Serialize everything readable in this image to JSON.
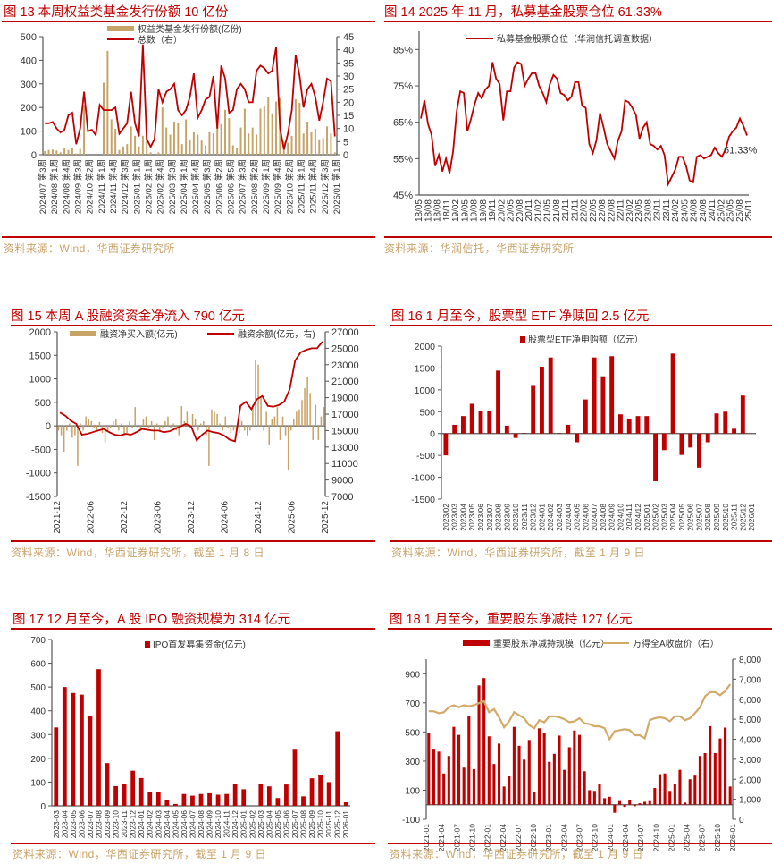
{
  "colors": {
    "title": "#c00000",
    "source": "#c9a46a",
    "red": "#c00000",
    "tan": "#c8a368"
  },
  "chart_data": [
    {
      "id": "fig13",
      "type": "bar+line",
      "title": "图 13 本周权益类基金发行份额 10 亿份",
      "source": "资料来源：Wind，华西证券研究所",
      "left_ticks": [
        "500",
        "400",
        "300",
        "200",
        "100",
        "0"
      ],
      "right_ticks": [
        "45",
        "40",
        "35",
        "30",
        "25",
        "20",
        "15",
        "10",
        "5",
        "0"
      ],
      "xlabels": [
        "2024/07 第3周",
        "2024/08 第1周",
        "2024/08 第4周",
        "2024/09 第3周",
        "2024/10 第2周",
        "2024/11 第1周",
        "2024/11 第4周",
        "2024/12 第3周",
        "2025/01 第1周",
        "2025/02 第1周",
        "2025/02 第4周",
        "2025/03 第3周",
        "2025/04 第1周",
        "2025/04 第4周",
        "2025/05 第3周",
        "2025/06 第2周",
        "2025/06 第5周",
        "2025/07 第3周",
        "2025/08 第2周",
        "2025/09 第1周",
        "2025/09 第4周",
        "2025/10 第2周",
        "2025/11 第1周",
        "2025/11 第4周",
        "2025/12 第3周",
        "2026/01 第1周"
      ],
      "bars": {
        "name": "权益类基金发行份额(亿份)",
        "axis": "left",
        "color": "#c8a368",
        "values": [
          15,
          20,
          22,
          18,
          10,
          30,
          20,
          30,
          5,
          25,
          210,
          0,
          0,
          0,
          0,
          305,
          440,
          150,
          110,
          20,
          35,
          45,
          120,
          80,
          35,
          80,
          150,
          10,
          0,
          10,
          200,
          115,
          85,
          140,
          135,
          45,
          150,
          65,
          95,
          85,
          60,
          40,
          95,
          90,
          130,
          130,
          190,
          155,
          40,
          30,
          115,
          195,
          90,
          115,
          85,
          195,
          205,
          245,
          175,
          225,
          240,
          55,
          50,
          80,
          235,
          220,
          90,
          140,
          95,
          110,
          65,
          70,
          120,
          90,
          10
        ]
      },
      "line": {
        "name": "总数（右）",
        "axis": "right",
        "color": "#c00000",
        "values": [
          12,
          12,
          12.5,
          10,
          8.5,
          9.5,
          15,
          16,
          4,
          10,
          24,
          9,
          9.5,
          7.5,
          19,
          17,
          17,
          17,
          18,
          8,
          10,
          12,
          24,
          12,
          7,
          42,
          6,
          3,
          6,
          25,
          20,
          24,
          25,
          27,
          17,
          15,
          17,
          22,
          31,
          14,
          17,
          21,
          22,
          30,
          10,
          34,
          29,
          16,
          17,
          25,
          27,
          25,
          20,
          20,
          32,
          34,
          33,
          31,
          32,
          41,
          10,
          2,
          8,
          17,
          38,
          30,
          18,
          25,
          27,
          22,
          13,
          20,
          29,
          28,
          7
        ]
      }
    },
    {
      "id": "fig14",
      "type": "line",
      "title": "图 14 2025 年 11 月，私募基金股票仓位 61.33%",
      "source": "资料来源：华润信托，华西证券研究所",
      "left_ticks": [
        "85%",
        "75%",
        "65%",
        "55%",
        "45%"
      ],
      "left_range": [
        45,
        90
      ],
      "xlabels": [
        "18/05",
        "18/08",
        "18/08",
        "18/11",
        "19/02",
        "19/05",
        "19/08",
        "19/08",
        "19/11",
        "20/02",
        "20/05",
        "20/08",
        "20/11",
        "21/02",
        "21/05",
        "21/08",
        "21/11",
        "21/11",
        "22/02",
        "22/05",
        "22/08",
        "22/08",
        "22/11",
        "23/02",
        "23/05",
        "23/08",
        "23/11",
        "23/11",
        "24/02",
        "24/05",
        "24/08",
        "24/08",
        "24/11",
        "25/02",
        "25/05",
        "25/08",
        "25/11"
      ],
      "line": {
        "name": "私募基金股票仓位（华润信托调查数据）",
        "axis": "left",
        "color": "#c00000",
        "values": [
          66,
          71,
          64.5,
          61.5,
          53,
          56,
          51.5,
          55,
          51,
          57,
          68,
          73.5,
          73,
          62.5,
          66,
          70,
          73,
          71.5,
          74,
          75,
          81.5,
          77,
          75.5,
          65.5,
          73.5,
          73.5,
          80,
          81.5,
          81,
          75,
          77,
          78.5,
          78.5,
          75,
          73,
          70.5,
          75.5,
          78,
          77,
          73,
          72.5,
          71,
          72,
          76,
          76,
          69.5,
          69,
          59,
          56.5,
          60,
          67.5,
          63.5,
          59,
          57,
          55,
          60,
          62.5,
          71,
          70.5,
          69,
          67,
          60.5,
          63.5,
          65,
          59,
          58.5,
          57.5,
          58.5,
          56,
          48,
          50,
          52,
          55.5,
          55.5,
          53,
          49,
          48.5,
          55.5,
          56,
          55,
          55.5,
          56,
          58,
          56.5,
          55.5,
          57.5,
          61,
          62.5,
          63.5,
          66,
          64,
          61.33
        ]
      },
      "end_label": "61.33%"
    },
    {
      "id": "fig15",
      "type": "bar+line",
      "title": "图 15 本周 A 股融资资金净流入 790 亿元",
      "source": "资料来源：Wind，华西证券研究所，截至 1 月 8 日",
      "left_ticks": [
        "2000",
        "1500",
        "1000",
        "500",
        "0",
        "-500",
        "-1000",
        "-1500"
      ],
      "right_ticks": [
        "27000",
        "25000",
        "23000",
        "21000",
        "19000",
        "17000",
        "15000",
        "13000",
        "11000",
        "9000",
        "7000"
      ],
      "xlabels": [
        "2021-12",
        "2022-06",
        "2022-12",
        "2023-06",
        "2023-12",
        "2024-06",
        "2024-12",
        "2025-06",
        "2025-12"
      ],
      "bars": {
        "name": "融资净买入额(亿元)",
        "axis": "left",
        "color": "#c8a368",
        "values": [
          -100,
          -200,
          -550,
          -100,
          50,
          -250,
          -200,
          -850,
          50,
          -100,
          200,
          150,
          100,
          -50,
          -100,
          80,
          -150,
          -350,
          -100,
          -50,
          100,
          150,
          -100,
          50,
          -200,
          -150,
          100,
          -50,
          400,
          -50,
          -100,
          150,
          200,
          -50,
          100,
          -300,
          50,
          -100,
          -50,
          100,
          200,
          -50,
          50,
          -100,
          -200,
          420,
          100,
          300,
          -50,
          250,
          150,
          -100,
          50,
          100,
          -200,
          -850,
          350,
          300,
          250,
          50,
          -100,
          200,
          -50,
          -150,
          -100,
          -200,
          -150,
          100,
          -100,
          -200,
          -100,
          450,
          1400,
          1300,
          600,
          -100,
          300,
          -400,
          150,
          200,
          400,
          -300,
          200,
          -200,
          -950,
          -100,
          150,
          300,
          350,
          550,
          800,
          1050,
          700,
          -300,
          450,
          -300,
          200,
          400
        ]
      },
      "line": {
        "name": "融资余额(亿元，右)",
        "axis": "right",
        "color": "#c00000",
        "values": [
          17200,
          16800,
          16200,
          15800,
          14500,
          14600,
          14800,
          15000,
          15200,
          14800,
          14500,
          14400,
          14600,
          14500,
          14800,
          15200,
          15100,
          15000,
          15000,
          14800,
          14900,
          15200,
          15500,
          15800,
          15500,
          13800,
          14500,
          15000,
          14800,
          14700,
          14400,
          13900,
          13700,
          18000,
          18500,
          17600,
          18800,
          19200,
          18000,
          17900,
          18100,
          18500,
          20000,
          23500,
          24500,
          24800,
          25000,
          25000,
          25800
        ]
      }
    },
    {
      "id": "fig16",
      "type": "bar",
      "title": "图 16 1 月至今，股票型 ETF 净赎回 2.5 亿元",
      "source": "资料来源：Wind，华西证券研究所，截至 1 月 9 日",
      "left_ticks": [
        "2000",
        "1500",
        "1000",
        "500",
        "0",
        "-500",
        "-1000",
        "-1500"
      ],
      "xlabels": [
        "2023/02",
        "2023/03",
        "2023/04",
        "2023/05",
        "2023/06",
        "2023/07",
        "2023/08",
        "2023/09",
        "2023/10",
        "2023/11",
        "2023/12",
        "2024/01",
        "2024/02",
        "2024/03",
        "2024/04",
        "2024/05",
        "2024/06",
        "2024/07",
        "2024/08",
        "2024/09",
        "2024/10",
        "2024/11",
        "2024/12",
        "2025/01",
        "2025/02",
        "2025/03",
        "2025/04",
        "2025/05",
        "2025/06",
        "2025/07",
        "2025/08",
        "2025/09",
        "2025/10",
        "2025/11",
        "2025/12",
        "2026/01"
      ],
      "bars": {
        "name": "股票型ETF净申购额（亿元）",
        "axis": "left",
        "color": "#c00000",
        "values": [
          -500,
          200,
          400,
          680,
          510,
          510,
          1440,
          180,
          -100,
          10,
          1090,
          1530,
          1740,
          10,
          200,
          -200,
          780,
          1740,
          1310,
          1770,
          440,
          330,
          400,
          400,
          -1090,
          -380,
          1830,
          -490,
          -320,
          -780,
          -200,
          460,
          500,
          110,
          870,
          -2.5
        ]
      }
    },
    {
      "id": "fig17",
      "type": "bar",
      "title": "图 17 12 月至今，A 股 IPO 融资规模为 314 亿元",
      "source": "资料来源：Wind，华西证券研究所，截至 1 月 9 日",
      "left_ticks": [
        "700",
        "600",
        "500",
        "400",
        "300",
        "200",
        "100",
        "0"
      ],
      "xlabels": [
        "2023-03",
        "2023-04",
        "2023-05",
        "2023-06",
        "2023-07",
        "2023-08",
        "2023-09",
        "2023-10",
        "2023-11",
        "2023-12",
        "2024-01",
        "2024-02",
        "2024-03",
        "2024-04",
        "2024-05",
        "2024-06",
        "2024-07",
        "2024-08",
        "2024-09",
        "2024-10",
        "2024-11",
        "2024-12",
        "2025-01",
        "2025-02",
        "2025-03",
        "2025-04",
        "2025-05",
        "2025-06",
        "2025-07",
        "2025-08",
        "2025-09",
        "2025-10",
        "2025-11",
        "2025-12",
        "2026-01"
      ],
      "bars": {
        "name": "IPO首发募集资金(亿元)",
        "axis": "left",
        "color": "#c00000",
        "values": [
          330,
          500,
          475,
          468,
          380,
          575,
          180,
          83,
          93,
          148,
          117,
          57,
          57,
          25,
          8,
          50,
          43,
          50,
          53,
          47,
          50,
          92,
          70,
          0,
          92,
          82,
          33,
          90,
          240,
          40,
          116,
          128,
          100,
          314,
          15
        ]
      }
    },
    {
      "id": "fig18",
      "type": "bar+line",
      "title": "图 18 1 月至今，重要股东净减持 127 亿元",
      "source": "资料来源：Wind，华西证券研究所，截至 1 月 9 日",
      "left_ticks": [
        "900",
        "700",
        "500",
        "300",
        "100",
        "-100"
      ],
      "left_range": [
        -100,
        1000
      ],
      "right_ticks": [
        "8,000",
        "7,000",
        "6,000",
        "5,000",
        "4,000",
        "3,000",
        "2,000",
        "1,000",
        "0"
      ],
      "xlabels": [
        "2021-01",
        "2021-04",
        "2021-07",
        "2021-10",
        "2022-01",
        "2022-04",
        "2022-07",
        "2022-10",
        "2023-01",
        "2023-04",
        "2023-07",
        "2023-10",
        "2024-01",
        "2024-04",
        "2024-07",
        "2024-10",
        "2025-01",
        "2025-04",
        "2025-07",
        "2025-10",
        "2026-01"
      ],
      "bars": {
        "name": "重要股东净减持规模（亿元）",
        "axis": "left",
        "color": "#c00000",
        "values": [
          490,
          385,
          365,
          215,
          335,
          535,
          480,
          255,
          610,
          245,
          820,
          870,
          470,
          280,
          420,
          125,
          195,
          535,
          405,
          310,
          445,
          90,
          525,
          495,
          295,
          350,
          475,
          240,
          395,
          510,
          480,
          230,
          100,
          95,
          140,
          45,
          55,
          -55,
          25,
          -15,
          30,
          -10,
          10,
          20,
          25,
          115,
          210,
          215,
          95,
          145,
          240,
          15,
          175,
          200,
          335,
          355,
          540,
          355,
          455,
          530,
          125
        ]
      },
      "line": {
        "name": "万得全A收盘价（右）",
        "axis": "right",
        "color": "#d2aa6a",
        "values": [
          5400,
          5400,
          5300,
          5350,
          5600,
          5700,
          5600,
          5700,
          5650,
          5700,
          5800,
          5900,
          5350,
          5500,
          5100,
          4600,
          4900,
          5350,
          5200,
          5050,
          4700,
          4550,
          4950,
          4850,
          5150,
          5150,
          5100,
          5000,
          4850,
          4900,
          5050,
          4800,
          4750,
          4650,
          4650,
          4550,
          4000,
          4400,
          4450,
          4500,
          4450,
          4200,
          4200,
          4050,
          4950,
          5050,
          5100,
          5050,
          4900,
          5150,
          5150,
          4950,
          5050,
          5300,
          5600,
          6150,
          6350,
          6350,
          6200,
          6400,
          6750
        ]
      }
    }
  ]
}
